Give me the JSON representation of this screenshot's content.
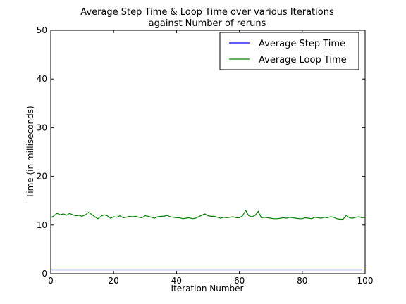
{
  "chart_data": {
    "type": "line",
    "title_lines": [
      "Average Step Time & Loop Time over various Iterations",
      "against Number of reruns"
    ],
    "xlabel": "Iteration Number",
    "ylabel": "Time (in milliseconds)",
    "xlim": [
      0,
      100
    ],
    "ylim": [
      0,
      50
    ],
    "xticks": [
      0,
      20,
      40,
      60,
      80,
      100
    ],
    "yticks": [
      0,
      10,
      20,
      30,
      40,
      50
    ],
    "grid": false,
    "legend_position": "top-right",
    "series": [
      {
        "name": "Average Step Time",
        "color": "#0000ff",
        "values": [
          0.8,
          0.8,
          0.8,
          0.8,
          0.8,
          0.8,
          0.8,
          0.8,
          0.8,
          0.8,
          0.8,
          0.8,
          0.8,
          0.8,
          0.8,
          0.8,
          0.8,
          0.8,
          0.8,
          0.8,
          0.8,
          0.8,
          0.8,
          0.8,
          0.8,
          0.8,
          0.8,
          0.8,
          0.8,
          0.8,
          0.8,
          0.8,
          0.8,
          0.8,
          0.8,
          0.8,
          0.8,
          0.8,
          0.8,
          0.8,
          0.8,
          0.8,
          0.8,
          0.8,
          0.8,
          0.8,
          0.8,
          0.8,
          0.8,
          0.8,
          0.8,
          0.8,
          0.8,
          0.8,
          0.8,
          0.8,
          0.8,
          0.8,
          0.8,
          0.8,
          0.8,
          0.8,
          0.8,
          0.8,
          0.8,
          0.8,
          0.8,
          0.8,
          0.8,
          0.8,
          0.8,
          0.8,
          0.8,
          0.8,
          0.8,
          0.8,
          0.8,
          0.8,
          0.8,
          0.8,
          0.8,
          0.8,
          0.8,
          0.8,
          0.8,
          0.8,
          0.8,
          0.8,
          0.8,
          0.8,
          0.8,
          0.8,
          0.8,
          0.8,
          0.8,
          0.8,
          0.8,
          0.8,
          0.8,
          0.8
        ]
      },
      {
        "name": "Average Loop Time",
        "color": "#008000",
        "values": [
          11.5,
          11.9,
          12.4,
          12.1,
          12.3,
          12.0,
          12.4,
          12.1,
          11.9,
          12.0,
          11.8,
          12.1,
          12.6,
          12.2,
          11.7,
          11.3,
          11.8,
          12.1,
          11.9,
          11.4,
          11.7,
          11.6,
          11.9,
          11.5,
          11.6,
          11.8,
          11.7,
          11.8,
          11.6,
          11.5,
          11.9,
          11.8,
          11.6,
          11.4,
          11.7,
          11.8,
          11.8,
          12.0,
          11.7,
          11.6,
          11.5,
          11.5,
          11.3,
          11.4,
          11.5,
          11.3,
          11.4,
          11.7,
          12.0,
          12.3,
          11.9,
          11.8,
          11.8,
          11.6,
          11.4,
          11.6,
          11.5,
          11.6,
          11.7,
          11.5,
          11.5,
          11.9,
          13.0,
          11.9,
          11.7,
          12.0,
          12.8,
          11.5,
          11.6,
          11.5,
          11.4,
          11.3,
          11.3,
          11.4,
          11.5,
          11.4,
          11.6,
          11.5,
          11.4,
          11.3,
          11.3,
          11.5,
          11.4,
          11.3,
          11.6,
          11.5,
          11.4,
          11.6,
          11.5,
          11.7,
          11.6,
          11.3,
          11.2,
          11.2,
          12.0,
          11.5,
          11.4,
          11.6,
          11.7,
          11.5,
          11.6
        ]
      }
    ]
  }
}
